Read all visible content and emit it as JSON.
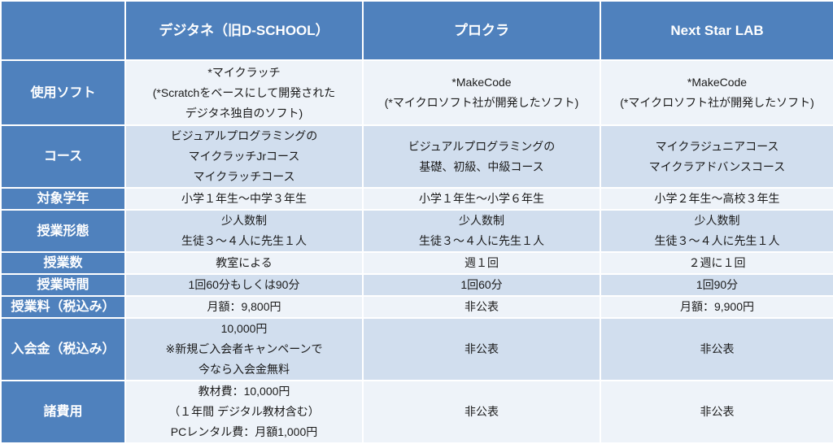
{
  "header": [
    "",
    "デジタネ（旧D-SCHOOL）",
    "プロクラ",
    "Next Star LAB"
  ],
  "rows": [
    {
      "label": "使用ソフト",
      "cells": [
        [
          "*マイクラッチ",
          "(*Scratchをベースにして開発された",
          "デジタネ独自のソフト)"
        ],
        [
          "*MakeCode",
          "(*マイクロソフト社が開発したソフト)"
        ],
        [
          "*MakeCode",
          "(*マイクロソフト社が開発したソフト)"
        ]
      ]
    },
    {
      "label": "コース",
      "cells": [
        [
          "ビジュアルプログラミングの",
          "マイクラッチJrコース",
          "マイクラッチコース"
        ],
        [
          "ビジュアルプログラミングの",
          "基礎、初級、中級コース"
        ],
        [
          "マイクラジュニアコース",
          "マイクラアドバンスコース"
        ]
      ]
    },
    {
      "label": "対象学年",
      "cells": [
        [
          "小学１年生〜中学３年生"
        ],
        [
          "小学１年生〜小学６年生"
        ],
        [
          "小学２年生〜高校３年生"
        ]
      ]
    },
    {
      "label": "授業形態",
      "cells": [
        [
          "少人数制",
          "生徒３〜４人に先生１人"
        ],
        [
          "少人数制",
          "生徒３〜４人に先生１人"
        ],
        [
          "少人数制",
          "生徒３〜４人に先生１人"
        ]
      ]
    },
    {
      "label": "授業数",
      "cells": [
        [
          "教室による"
        ],
        [
          "週１回"
        ],
        [
          "２週に１回"
        ]
      ]
    },
    {
      "label": "授業時間",
      "cells": [
        [
          "1回60分もしくは90分"
        ],
        [
          "1回60分"
        ],
        [
          "1回90分"
        ]
      ]
    },
    {
      "label": "授業料（税込み）",
      "cells": [
        [
          "月額：9,800円"
        ],
        [
          "非公表"
        ],
        [
          "月額：9,900円"
        ]
      ]
    },
    {
      "label": "入会金（税込み）",
      "cells": [
        [
          "10,000円",
          "※新規ご入会者キャンペーンで",
          "今なら入会金無料"
        ],
        [
          "非公表"
        ],
        [
          "非公表"
        ]
      ]
    },
    {
      "label": "諸費用",
      "cells": [
        [
          "教材費：10,000円",
          "（１年間 デジタル教材含む）",
          "PCレンタル費：月額1,000円"
        ],
        [
          "非公表"
        ],
        [
          "非公表"
        ]
      ]
    }
  ],
  "colors": {
    "header": "#4f81bd",
    "row_light": "#eef3f9",
    "row_dark": "#d1deee"
  }
}
